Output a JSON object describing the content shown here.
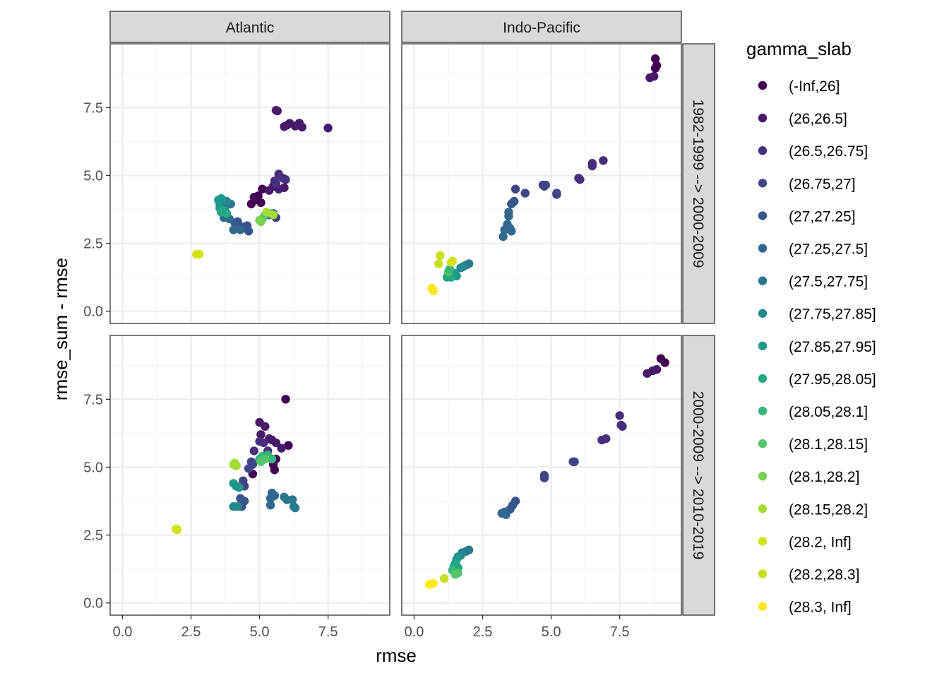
{
  "chart_data": {
    "type": "scatter",
    "xlabel": "rmse",
    "ylabel": "rmse_sum - rmse",
    "xlim": [
      -0.45,
      9.75
    ],
    "ylim": [
      -0.45,
      9.85
    ],
    "x_ticks": [
      0.0,
      2.5,
      5.0,
      7.5
    ],
    "x_tick_labels": [
      "0.0",
      "2.5",
      "5.0",
      "7.5"
    ],
    "y_ticks": [
      0.0,
      2.5,
      5.0,
      7.5
    ],
    "y_tick_labels": [
      "0.0",
      "2.5",
      "5.0",
      "7.5"
    ],
    "grid": true,
    "facet_columns": [
      "Atlantic",
      "Indo-Pacific"
    ],
    "facet_rows": [
      "1982-1999 --> 2000-2009",
      "2000-2009 --> 2010-2019"
    ],
    "legend": {
      "title": "gamma_slab",
      "position": "right",
      "entries": [
        {
          "label": "(-Inf,26]",
          "color": "#440154"
        },
        {
          "label": "(26,26.5]",
          "color": "#481A6C"
        },
        {
          "label": "(26.5,26.75]",
          "color": "#472F7D"
        },
        {
          "label": "(26.75,27]",
          "color": "#414487"
        },
        {
          "label": "(27,27.25]",
          "color": "#39568C"
        },
        {
          "label": "(27.25,27.5]",
          "color": "#31688E"
        },
        {
          "label": "(27.5,27.75]",
          "color": "#2A788E"
        },
        {
          "label": "(27.75,27.85]",
          "color": "#23888E"
        },
        {
          "label": "(27.85,27.95]",
          "color": "#1F988B"
        },
        {
          "label": "(27.95,28.05]",
          "color": "#22A884"
        },
        {
          "label": "(28.05,28.1]",
          "color": "#35B779"
        },
        {
          "label": "(28.1,28.15]",
          "color": "#54C568"
        },
        {
          "label": "(28.1,28.2]",
          "color": "#7AD151"
        },
        {
          "label": "(28.15,28.2]",
          "color": "#A5DB36"
        },
        {
          "label": "(28.2, Inf]",
          "color": "#D2E21B"
        },
        {
          "label": "(28.2,28.3]",
          "color": "#C8E020"
        },
        {
          "label": "(28.3, Inf]",
          "color": "#FDE725"
        }
      ]
    },
    "panels": [
      {
        "col": 0,
        "row": 0,
        "points": [
          [
            5.6,
            7.4,
            1
          ],
          [
            5.65,
            7.38,
            1
          ],
          [
            6.0,
            6.85,
            1
          ],
          [
            6.1,
            6.92,
            1
          ],
          [
            6.3,
            6.82,
            1
          ],
          [
            6.45,
            6.93,
            1
          ],
          [
            6.55,
            6.78,
            1
          ],
          [
            7.5,
            6.75,
            1
          ],
          [
            5.9,
            6.8,
            1
          ],
          [
            4.7,
            3.95,
            0
          ],
          [
            4.8,
            4.2,
            0
          ],
          [
            4.95,
            4.25,
            0
          ],
          [
            5.1,
            4.5,
            0
          ],
          [
            4.85,
            4.1,
            0
          ],
          [
            5.05,
            4.0,
            0
          ],
          [
            5.5,
            4.6,
            1
          ],
          [
            5.7,
            4.5,
            1
          ],
          [
            5.9,
            4.55,
            1
          ],
          [
            5.35,
            4.45,
            1
          ],
          [
            5.55,
            4.8,
            2
          ],
          [
            5.7,
            5.05,
            2
          ],
          [
            5.85,
            4.9,
            2
          ],
          [
            5.95,
            4.85,
            2
          ],
          [
            5.6,
            4.7,
            2
          ],
          [
            5.4,
            3.55,
            3
          ],
          [
            5.5,
            3.6,
            3
          ],
          [
            5.6,
            3.45,
            3
          ],
          [
            5.3,
            3.55,
            3
          ],
          [
            4.4,
            3.1,
            4
          ],
          [
            4.55,
            3.15,
            4
          ],
          [
            4.6,
            2.95,
            4
          ],
          [
            4.2,
            3.3,
            4
          ],
          [
            4.1,
            3.25,
            4
          ],
          [
            4.05,
            3.0,
            5
          ],
          [
            3.9,
            3.4,
            5
          ],
          [
            4.3,
            3.0,
            5
          ],
          [
            3.7,
            3.45,
            5
          ],
          [
            3.75,
            3.85,
            6
          ],
          [
            3.95,
            3.95,
            6
          ],
          [
            3.65,
            4.0,
            6
          ],
          [
            3.55,
            3.95,
            7
          ],
          [
            3.65,
            4.1,
            7
          ],
          [
            3.8,
            4.05,
            7
          ],
          [
            3.5,
            4.1,
            8
          ],
          [
            3.6,
            4.15,
            8
          ],
          [
            3.55,
            3.8,
            8
          ],
          [
            3.7,
            3.7,
            9
          ],
          [
            3.8,
            3.6,
            9
          ],
          [
            3.6,
            3.65,
            9
          ],
          [
            5.2,
            3.55,
            11
          ],
          [
            5.4,
            3.6,
            11
          ],
          [
            5.1,
            3.4,
            11
          ],
          [
            5.0,
            3.35,
            12
          ],
          [
            5.05,
            3.3,
            12
          ],
          [
            5.25,
            3.65,
            13
          ],
          [
            5.5,
            3.55,
            13
          ],
          [
            2.7,
            2.1,
            14
          ],
          [
            2.8,
            2.1,
            14
          ]
        ]
      },
      {
        "col": 1,
        "row": 0,
        "points": [
          [
            8.8,
            9.3,
            0
          ],
          [
            8.85,
            9.05,
            0
          ],
          [
            8.8,
            8.95,
            0
          ],
          [
            8.6,
            8.6,
            1
          ],
          [
            8.75,
            8.65,
            1
          ],
          [
            6.9,
            5.55,
            2
          ],
          [
            6.5,
            5.45,
            2
          ],
          [
            6.5,
            5.35,
            2
          ],
          [
            6.0,
            4.9,
            2
          ],
          [
            6.05,
            4.85,
            2
          ],
          [
            5.2,
            4.35,
            3
          ],
          [
            5.2,
            4.3,
            3
          ],
          [
            4.8,
            4.65,
            3
          ],
          [
            4.7,
            4.65,
            3
          ],
          [
            4.75,
            4.6,
            3
          ],
          [
            4.05,
            4.35,
            3
          ],
          [
            3.7,
            4.5,
            3
          ],
          [
            3.6,
            4.0,
            4
          ],
          [
            3.65,
            4.05,
            4
          ],
          [
            3.55,
            3.95,
            4
          ],
          [
            3.45,
            3.65,
            5
          ],
          [
            3.45,
            3.5,
            5
          ],
          [
            3.4,
            3.2,
            5
          ],
          [
            3.5,
            3.05,
            5
          ],
          [
            3.55,
            2.95,
            5
          ],
          [
            3.3,
            3.0,
            5
          ],
          [
            3.25,
            2.75,
            5
          ],
          [
            2.0,
            1.75,
            6
          ],
          [
            1.9,
            1.7,
            6
          ],
          [
            1.8,
            1.65,
            7
          ],
          [
            1.7,
            1.6,
            7
          ],
          [
            1.5,
            1.4,
            8
          ],
          [
            1.55,
            1.3,
            8
          ],
          [
            1.45,
            1.3,
            8
          ],
          [
            1.3,
            1.3,
            9
          ],
          [
            1.2,
            1.25,
            9
          ],
          [
            1.35,
            1.25,
            9
          ],
          [
            1.25,
            1.45,
            11
          ],
          [
            1.3,
            1.55,
            10
          ],
          [
            1.35,
            1.8,
            14
          ],
          [
            1.4,
            1.85,
            14
          ],
          [
            0.95,
            2.05,
            15
          ],
          [
            0.9,
            1.75,
            15
          ],
          [
            0.65,
            0.85,
            16
          ],
          [
            0.7,
            0.75,
            16
          ]
        ]
      },
      {
        "col": 0,
        "row": 1,
        "points": [
          [
            5.95,
            7.5,
            0
          ],
          [
            6.05,
            5.8,
            0
          ],
          [
            5.5,
            5.1,
            0
          ],
          [
            5.55,
            4.9,
            0
          ],
          [
            4.75,
            4.75,
            0
          ],
          [
            5.6,
            5.3,
            0
          ],
          [
            5.0,
            6.65,
            1
          ],
          [
            5.2,
            6.5,
            1
          ],
          [
            5.05,
            6.2,
            1
          ],
          [
            5.35,
            6.05,
            1
          ],
          [
            5.45,
            6.0,
            1
          ],
          [
            5.6,
            5.9,
            1
          ],
          [
            5.8,
            5.7,
            1
          ],
          [
            5.0,
            5.95,
            2
          ],
          [
            5.15,
            5.9,
            2
          ],
          [
            4.8,
            5.6,
            2
          ],
          [
            5.3,
            5.6,
            2
          ],
          [
            4.7,
            5.2,
            3
          ],
          [
            4.75,
            5.1,
            3
          ],
          [
            4.6,
            4.95,
            3
          ],
          [
            4.4,
            4.5,
            3
          ],
          [
            4.45,
            4.3,
            3
          ],
          [
            4.3,
            3.85,
            4
          ],
          [
            4.45,
            3.75,
            4
          ],
          [
            4.35,
            3.55,
            4
          ],
          [
            5.45,
            4.05,
            5
          ],
          [
            5.55,
            3.95,
            5
          ],
          [
            5.4,
            3.85,
            5
          ],
          [
            5.4,
            3.6,
            5
          ],
          [
            5.9,
            3.9,
            6
          ],
          [
            6.0,
            3.8,
            6
          ],
          [
            6.2,
            3.8,
            6
          ],
          [
            6.25,
            3.55,
            6
          ],
          [
            6.3,
            3.5,
            6
          ],
          [
            4.05,
            3.55,
            7
          ],
          [
            4.2,
            3.55,
            7
          ],
          [
            4.05,
            4.4,
            8
          ],
          [
            4.15,
            4.3,
            8
          ],
          [
            4.25,
            4.25,
            8
          ],
          [
            5.0,
            5.3,
            10
          ],
          [
            5.1,
            5.4,
            10
          ],
          [
            5.3,
            5.45,
            10
          ],
          [
            5.45,
            5.3,
            10
          ],
          [
            5.05,
            5.2,
            11
          ],
          [
            5.2,
            5.3,
            11
          ],
          [
            4.05,
            5.1,
            13
          ],
          [
            4.1,
            5.15,
            13
          ],
          [
            4.15,
            5.05,
            13
          ],
          [
            2.0,
            2.7,
            14
          ],
          [
            1.95,
            2.72,
            14
          ]
        ]
      },
      {
        "col": 1,
        "row": 1,
        "points": [
          [
            9.0,
            9.0,
            0
          ],
          [
            9.15,
            8.85,
            0
          ],
          [
            8.7,
            8.55,
            1
          ],
          [
            8.85,
            8.6,
            1
          ],
          [
            8.5,
            8.45,
            1
          ],
          [
            7.55,
            6.55,
            2
          ],
          [
            7.6,
            6.5,
            2
          ],
          [
            7.5,
            6.9,
            2
          ],
          [
            7.0,
            6.05,
            2
          ],
          [
            6.85,
            6.0,
            2
          ],
          [
            5.8,
            5.2,
            3
          ],
          [
            5.85,
            5.2,
            3
          ],
          [
            4.75,
            4.7,
            3
          ],
          [
            4.75,
            4.6,
            3
          ],
          [
            3.7,
            3.75,
            4
          ],
          [
            3.6,
            3.6,
            4
          ],
          [
            3.5,
            3.45,
            4
          ],
          [
            3.3,
            3.35,
            5
          ],
          [
            3.2,
            3.3,
            5
          ],
          [
            3.35,
            3.25,
            5
          ],
          [
            2.0,
            1.95,
            6
          ],
          [
            1.9,
            1.9,
            6
          ],
          [
            1.75,
            1.85,
            7
          ],
          [
            1.7,
            1.75,
            7
          ],
          [
            1.6,
            1.7,
            8
          ],
          [
            1.55,
            1.6,
            8
          ],
          [
            1.5,
            1.45,
            9
          ],
          [
            1.45,
            1.35,
            9
          ],
          [
            1.6,
            1.3,
            9
          ],
          [
            1.4,
            1.2,
            10
          ],
          [
            1.6,
            1.1,
            11
          ],
          [
            1.5,
            1.05,
            11
          ],
          [
            1.1,
            0.9,
            15
          ],
          [
            0.6,
            0.7,
            16
          ],
          [
            0.7,
            0.72,
            16
          ],
          [
            0.55,
            0.68,
            16
          ]
        ]
      }
    ]
  }
}
